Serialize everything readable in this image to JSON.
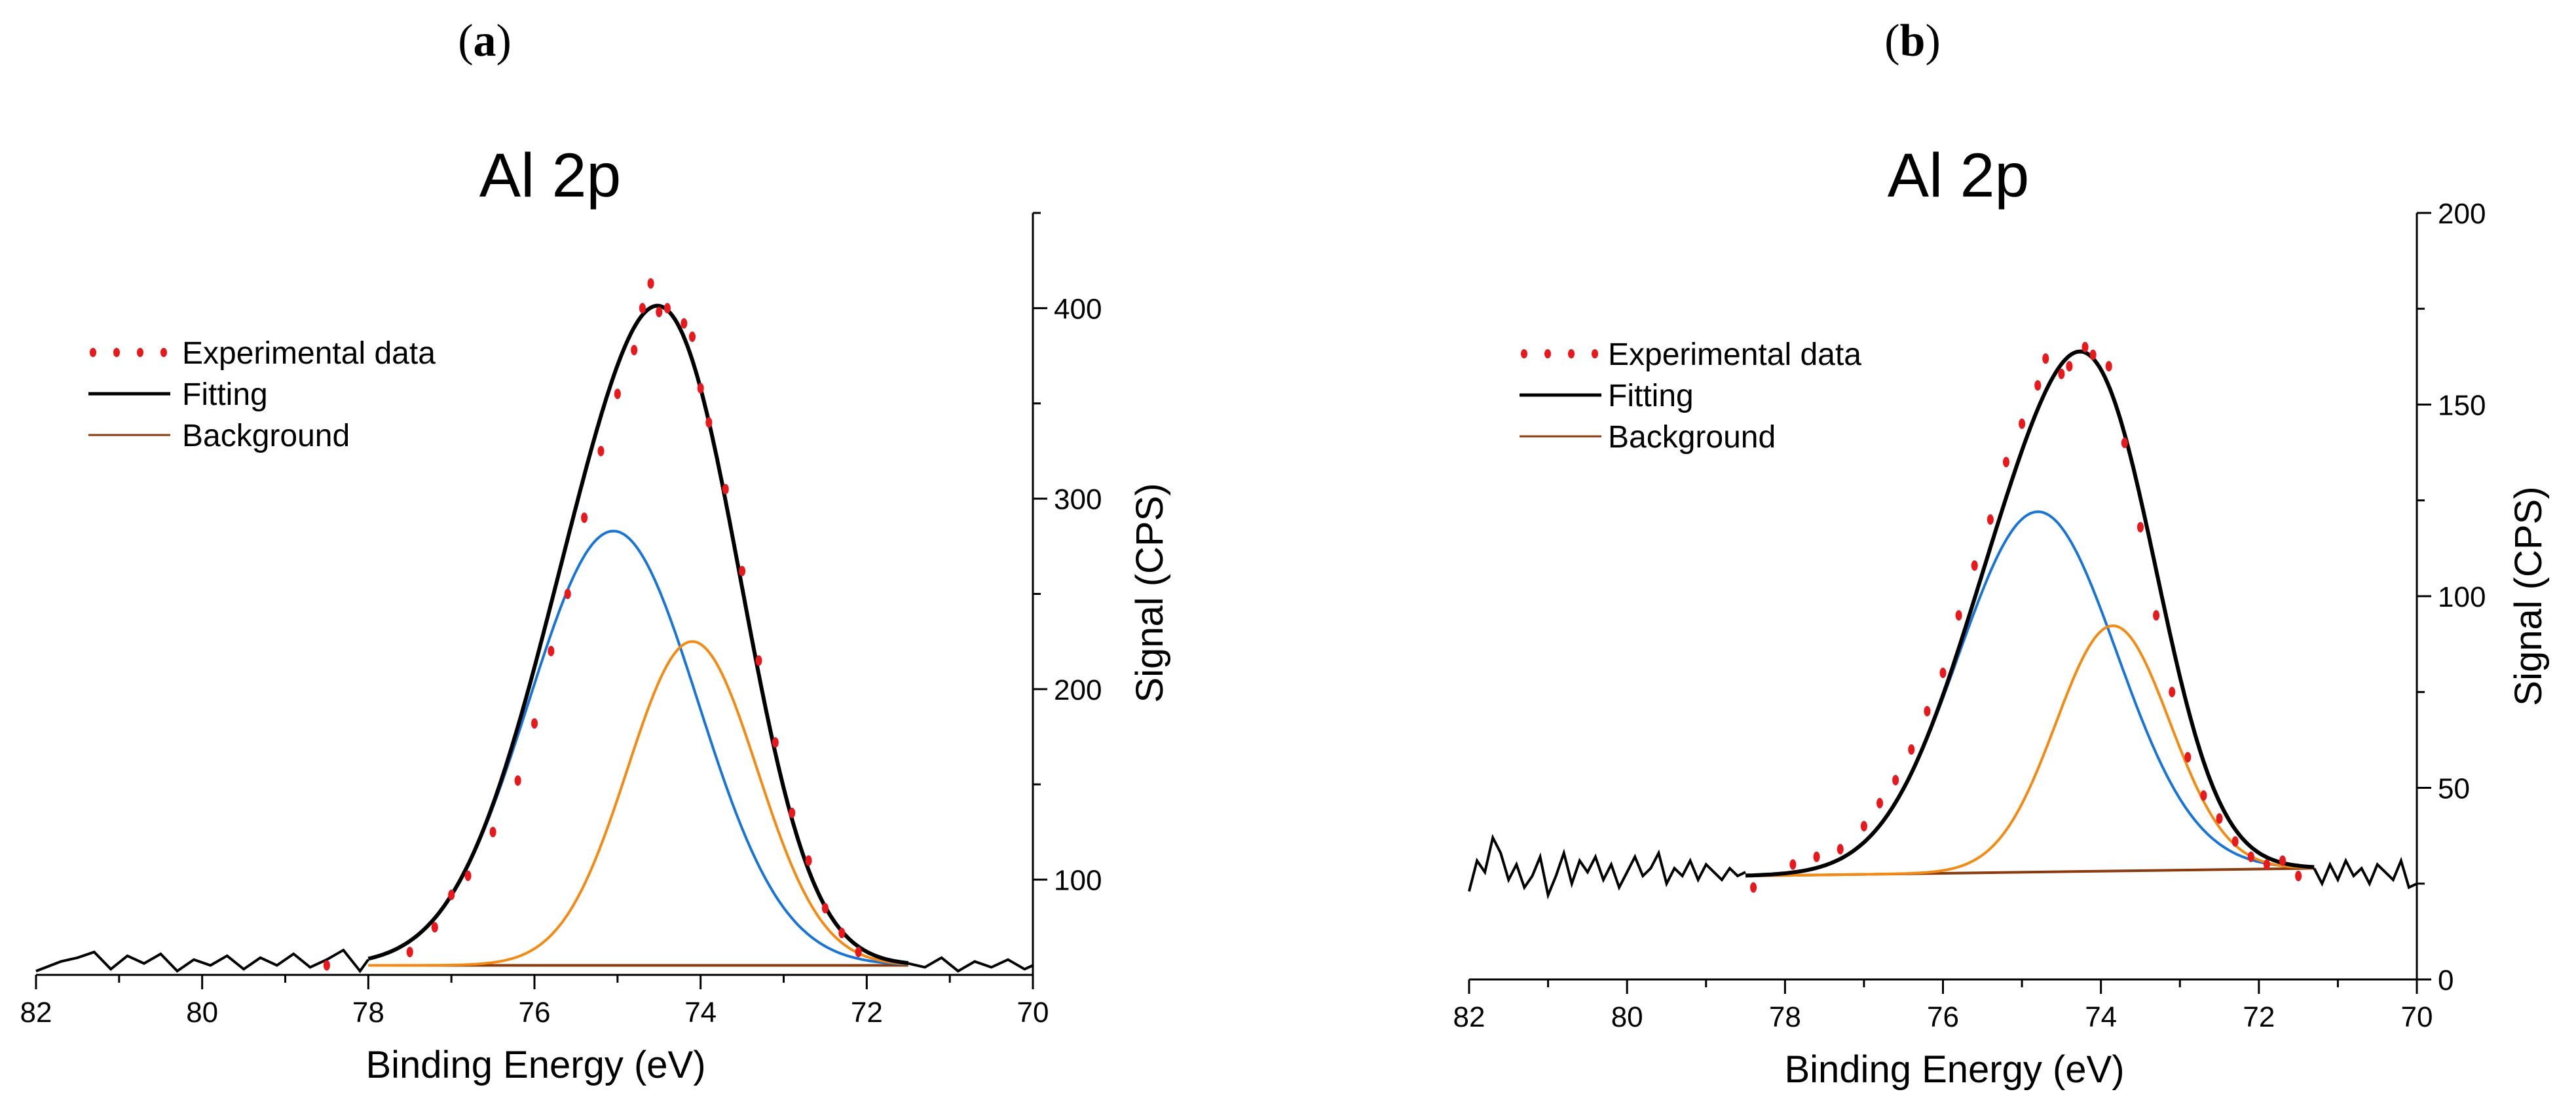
{
  "colors": {
    "experimental": "#e8191c",
    "fitting": "#000000",
    "background": "#8b3a0e",
    "component_blue": "#1874d6",
    "component_orange": "#f28a14",
    "axis": "#000000"
  },
  "chart_data": [
    {
      "panel_label": "a",
      "type": "line",
      "title": "Al 2p",
      "xlabel": "Binding Energy (eV)",
      "ylabel": "Signal (CPS)",
      "xlim": [
        82,
        70
      ],
      "ylim": [
        50,
        450
      ],
      "x_ticks": [
        82,
        80,
        78,
        76,
        74,
        72,
        70
      ],
      "y_ticks": [
        100,
        200,
        300,
        400
      ],
      "legend": [
        "Experimental data",
        "Fitting",
        "Background"
      ],
      "background_level": 55,
      "fit_range": [
        78.0,
        71.5
      ],
      "components": [
        {
          "name": "blue",
          "center": 75.05,
          "sigma": 1.02,
          "amplitude": 228
        },
        {
          "name": "orange",
          "center": 74.1,
          "sigma": 0.78,
          "amplitude": 170
        }
      ],
      "noise_segments": [
        {
          "x": [
            82,
            81.7,
            81.5,
            81.3,
            81.1,
            80.9,
            80.7,
            80.5,
            80.3,
            80.1,
            79.9,
            79.7,
            79.5,
            79.3,
            79.1,
            78.9,
            78.7,
            78.5,
            78.3,
            78.1,
            78.0
          ],
          "y": [
            52,
            57,
            59,
            62,
            53,
            60,
            56,
            61,
            52,
            58,
            55,
            60,
            53,
            59,
            55,
            61,
            54,
            58,
            63,
            52,
            58
          ]
        },
        {
          "x": [
            71.5,
            71.3,
            71.1,
            70.9,
            70.7,
            70.5,
            70.3,
            70.1,
            70.0
          ],
          "y": [
            56,
            54,
            59,
            52,
            57,
            54,
            58,
            53,
            55
          ]
        }
      ],
      "experimental_points": {
        "x": [
          78.5,
          77.5,
          77.2,
          77.0,
          76.8,
          76.5,
          76.2,
          76.0,
          75.8,
          75.6,
          75.4,
          75.2,
          75.0,
          74.8,
          74.7,
          74.6,
          74.5,
          74.4,
          74.2,
          74.1,
          74.0,
          73.9,
          73.7,
          73.5,
          73.3,
          73.1,
          72.9,
          72.7,
          72.5,
          72.3,
          72.1
        ],
        "y": [
          55,
          62,
          75,
          92,
          102,
          125,
          152,
          182,
          220,
          250,
          290,
          325,
          355,
          378,
          400,
          413,
          398,
          400,
          392,
          385,
          358,
          340,
          305,
          262,
          215,
          172,
          135,
          110,
          85,
          72,
          62
        ]
      }
    },
    {
      "panel_label": "b",
      "type": "line",
      "title": "Al 2p",
      "xlabel": "Binding Energy (eV)",
      "ylabel": "Signal (CPS)",
      "xlim": [
        82,
        70
      ],
      "ylim": [
        0,
        200
      ],
      "x_ticks": [
        82,
        80,
        78,
        76,
        74,
        72,
        70
      ],
      "y_ticks": [
        0,
        50,
        100,
        150,
        200
      ],
      "legend": [
        "Experimental data",
        "Fitting",
        "Background"
      ],
      "background_level": [
        27,
        29
      ],
      "fit_range": [
        78.5,
        71.3
      ],
      "components": [
        {
          "name": "blue",
          "center": 74.8,
          "sigma": 1.0,
          "amplitude": 94
        },
        {
          "name": "orange",
          "center": 73.85,
          "sigma": 0.72,
          "amplitude": 64
        }
      ],
      "noise_segments": [
        {
          "x": [
            82,
            81.9,
            81.8,
            81.7,
            81.6,
            81.5,
            81.4,
            81.3,
            81.2,
            81.1,
            81.0,
            80.9,
            80.8,
            80.7,
            80.6,
            80.5,
            80.4,
            80.3,
            80.2,
            80.1,
            80.0,
            79.9,
            79.8,
            79.7,
            79.6,
            79.5,
            79.4,
            79.3,
            79.2,
            79.1,
            79.0,
            78.9,
            78.8,
            78.7,
            78.6,
            78.5
          ],
          "y": [
            23,
            31,
            28,
            37,
            33,
            26,
            30,
            24,
            27,
            32,
            22,
            27,
            33,
            25,
            31,
            28,
            32,
            26,
            30,
            24,
            28,
            32,
            27,
            29,
            33,
            25,
            29,
            27,
            31,
            26,
            30,
            28,
            26,
            29,
            27,
            28
          ]
        },
        {
          "x": [
            71.3,
            71.2,
            71.1,
            71.0,
            70.9,
            70.8,
            70.7,
            70.6,
            70.5,
            70.4,
            70.3,
            70.2,
            70.1,
            70.0
          ],
          "y": [
            29,
            25,
            30,
            26,
            31,
            27,
            29,
            25,
            30,
            28,
            26,
            31,
            24,
            25
          ]
        }
      ],
      "experimental_points": {
        "x": [
          78.4,
          77.9,
          77.6,
          77.3,
          77.0,
          76.8,
          76.6,
          76.4,
          76.2,
          76.0,
          75.8,
          75.6,
          75.4,
          75.2,
          75.0,
          74.8,
          74.7,
          74.5,
          74.4,
          74.2,
          74.1,
          73.9,
          73.7,
          73.5,
          73.3,
          73.1,
          72.9,
          72.7,
          72.5,
          72.3,
          72.1,
          71.9,
          71.7,
          71.5
        ],
        "y": [
          24,
          30,
          32,
          34,
          40,
          46,
          52,
          60,
          70,
          80,
          95,
          108,
          120,
          135,
          145,
          155,
          162,
          158,
          160,
          165,
          163,
          160,
          140,
          118,
          95,
          75,
          58,
          48,
          42,
          36,
          32,
          30,
          31,
          27
        ]
      }
    }
  ]
}
